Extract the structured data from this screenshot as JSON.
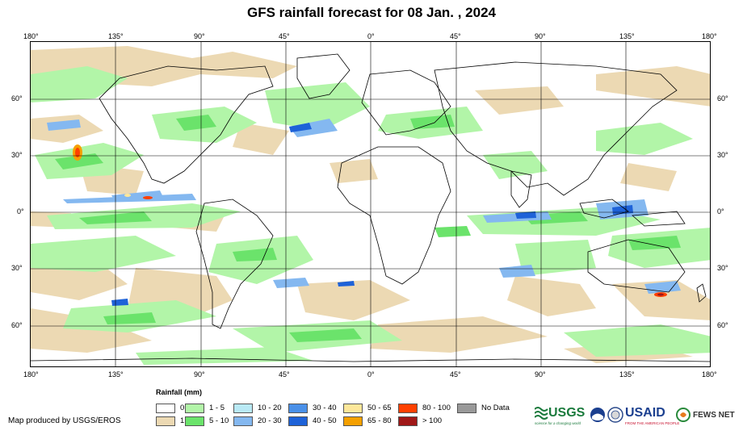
{
  "title": "GFS rainfall forecast for 08 Jan. , 2024",
  "axes": {
    "longitude_labels": [
      "180°",
      "135°",
      "90°",
      "45°",
      "0°",
      "45°",
      "90°",
      "135°",
      "180°"
    ],
    "latitude_labels": [
      "60°",
      "30°",
      "0°",
      "30°",
      "60°"
    ]
  },
  "legend": {
    "title": "Rainfall (mm)",
    "items": [
      {
        "label": "0",
        "color": "#ffffff"
      },
      {
        "label": "1",
        "color": "#ecd9b3"
      },
      {
        "label": "1 - 5",
        "color": "#b2f5a8"
      },
      {
        "label": "5 - 10",
        "color": "#6be36b"
      },
      {
        "label": "10 - 20",
        "color": "#b9e9f5"
      },
      {
        "label": "20 - 30",
        "color": "#84b8f0"
      },
      {
        "label": "30 - 40",
        "color": "#4a90e8"
      },
      {
        "label": "40 - 50",
        "color": "#1e62d8"
      },
      {
        "label": "50 - 65",
        "color": "#fde79a"
      },
      {
        "label": "65 - 80",
        "color": "#f5a000"
      },
      {
        "label": "80 - 100",
        "color": "#ff4000"
      },
      {
        "label": "> 100",
        "color": "#a01818"
      },
      {
        "label": "No Data",
        "color": "#999999"
      }
    ]
  },
  "credit": "Map produced by USGS/EROS",
  "logos": {
    "usgs": "USGS",
    "usgs_tagline": "science for a changing world",
    "usaid": "USAID",
    "usaid_tagline": "FROM THE AMERICAN PEOPLE",
    "fews": "FEWS NET"
  }
}
